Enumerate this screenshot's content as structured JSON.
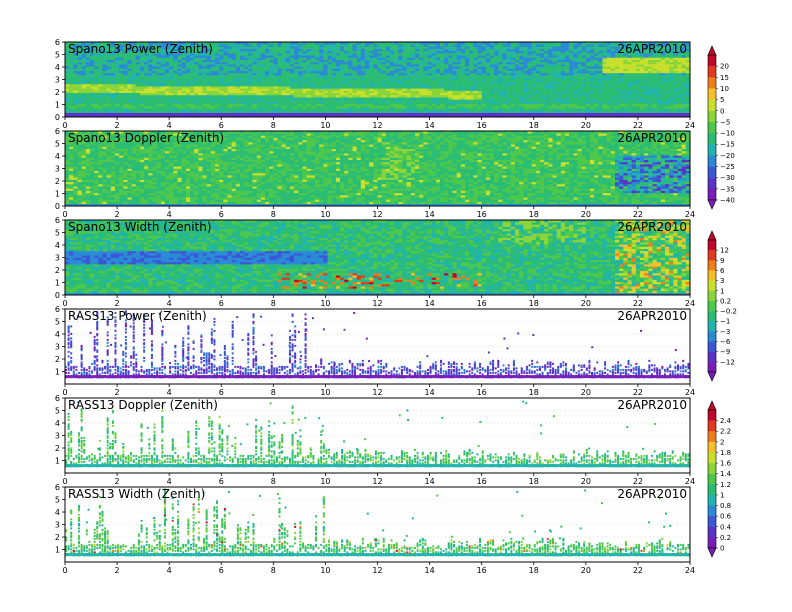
{
  "chart_data": [
    {
      "type": "heatmap",
      "title": "Spano13 Power (Zenith)",
      "date": "26APR2010",
      "xlim": [
        0,
        24
      ],
      "ylim": [
        0,
        6
      ],
      "xticks": [
        "0",
        "2",
        "4",
        "6",
        "8",
        "10",
        "12",
        "14",
        "16",
        "18",
        "20",
        "22",
        "24"
      ],
      "yticks": [
        "0",
        "1",
        "2",
        "3",
        "4",
        "5",
        "6"
      ],
      "colorbar": "power",
      "note": "dense field, mostly -20 to -5; bright band near y~2 from 0-10 h; strong layer near y~1; high values 21-24 h at 3.5-4.5"
    },
    {
      "type": "heatmap",
      "title": "Spano13 Doppler (Zenith)",
      "date": "26APR2010",
      "xlim": [
        0,
        24
      ],
      "ylim": [
        0,
        6
      ],
      "xticks": [
        "0",
        "2",
        "4",
        "6",
        "8",
        "10",
        "12",
        "14",
        "16",
        "18",
        "20",
        "22",
        "24"
      ],
      "yticks": [
        "0",
        "1",
        "2",
        "3",
        "4",
        "5",
        "6"
      ],
      "colorbar": "doppler",
      "note": "dense field near 0 (green), scattered positive (yellow) streaks, negative (blue) patch 21-24 h"
    },
    {
      "type": "heatmap",
      "title": "Spano13 Width (Zenith)",
      "date": "26APR2010",
      "xlim": [
        0,
        24
      ],
      "ylim": [
        0,
        6
      ],
      "xticks": [
        "0",
        "2",
        "4",
        "6",
        "8",
        "10",
        "12",
        "14",
        "16",
        "18",
        "20",
        "22",
        "24"
      ],
      "yticks": [
        "0",
        "1",
        "2",
        "3",
        "4",
        "5",
        "6"
      ],
      "colorbar": "power",
      "note": "dense field; yellow/red cells near y 0.5-1.5 from 9-16 h; high values 21-24 h"
    },
    {
      "type": "heatmap",
      "title": "RASS13 Power (Zenith)",
      "date": "26APR2010",
      "xlim": [
        0,
        24
      ],
      "ylim": [
        0,
        6
      ],
      "xticks": [
        "0",
        "2",
        "4",
        "6",
        "8",
        "10",
        "12",
        "14",
        "16",
        "18",
        "20",
        "22",
        "24"
      ],
      "yticks": [
        "1",
        "2",
        "3",
        "4",
        "5",
        "6"
      ],
      "colorbar": "doppler",
      "note": "sparse; tall blue/purple columns 0-10 h, low layer (<1.5) afterwards"
    },
    {
      "type": "heatmap",
      "title": "RASS13 Doppler (Zenith)",
      "date": "26APR2010",
      "xlim": [
        0,
        24
      ],
      "ylim": [
        0,
        6
      ],
      "xticks": [
        "0",
        "2",
        "4",
        "6",
        "8",
        "10",
        "12",
        "14",
        "16",
        "18",
        "20",
        "22",
        "24"
      ],
      "yticks": [
        "1",
        "2",
        "3",
        "4",
        "5",
        "6"
      ],
      "colorbar": "width",
      "note": "sparse; tall green columns 0-10 h, low layer after"
    },
    {
      "type": "heatmap",
      "title": "RASS13 Width (Zenith)",
      "date": "26APR2010",
      "xlim": [
        0,
        24
      ],
      "ylim": [
        0,
        6
      ],
      "xticks": [
        "0",
        "2",
        "4",
        "6",
        "8",
        "10",
        "12",
        "14",
        "16",
        "18",
        "20",
        "22",
        "24"
      ],
      "yticks": [
        "1",
        "2",
        "3",
        "4",
        "5",
        "6"
      ],
      "colorbar": "width",
      "note": "sparse; tall green columns 0-10 h, low layer after"
    }
  ],
  "colorbars": {
    "power": {
      "labels": [
        "20",
        "15",
        "10",
        "5",
        "0",
        "−5",
        "−10",
        "−15",
        "−20",
        "−25",
        "−30",
        "−35",
        "−40"
      ],
      "colors": [
        "#c0082b",
        "#e03a1e",
        "#f07d1c",
        "#f6c02c",
        "#c8e02c",
        "#8ad63a",
        "#4ec84a",
        "#2bbd73",
        "#20b3b0",
        "#2a8ad6",
        "#3a58d6",
        "#5a34c8",
        "#7a1cb8"
      ]
    },
    "doppler": {
      "labels": [
        "12",
        "9",
        "6",
        "3",
        "1",
        "0.2",
        "−0.2",
        "−1",
        "−3",
        "−6",
        "−9",
        "−12"
      ],
      "colors": [
        "#c0082b",
        "#e03a1e",
        "#f07d1c",
        "#f6c02c",
        "#c8e02c",
        "#8ad63a",
        "#4ec84a",
        "#2bbd73",
        "#20b3b0",
        "#2a8ad6",
        "#3a58d6",
        "#5a34c8",
        "#7a1cb8"
      ]
    },
    "width": {
      "labels": [
        "2.4",
        "2.2",
        "2",
        "1.8",
        "1.6",
        "1.4",
        "1.2",
        "1",
        "0.8",
        "0.6",
        "0.4",
        "0.2",
        "0"
      ],
      "colors": [
        "#c0082b",
        "#e03a1e",
        "#f07d1c",
        "#f6c02c",
        "#c8e02c",
        "#8ad63a",
        "#4ec84a",
        "#2bbd73",
        "#20b3b0",
        "#2a8ad6",
        "#3a58d6",
        "#5a34c8",
        "#7a1cb8"
      ]
    }
  }
}
